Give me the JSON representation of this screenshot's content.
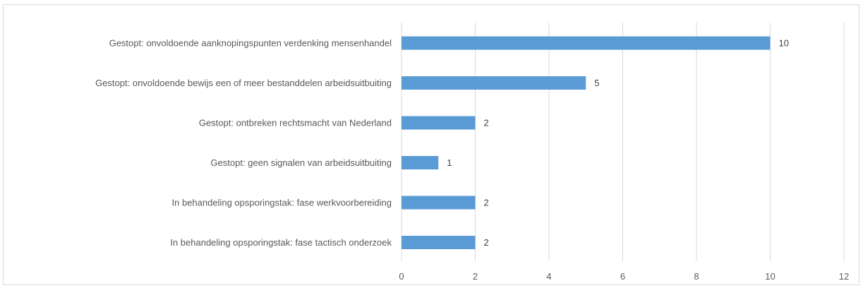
{
  "chart_data": {
    "type": "bar",
    "orientation": "horizontal",
    "categories": [
      "Gestopt: onvoldoende aanknopingspunten verdenking mensenhandel",
      "Gestopt: onvoldoende bewijs een of meer bestanddelen arbeidsuitbuiting",
      "Gestopt: ontbreken rechtsmacht van Nederland",
      "Gestopt: geen signalen van arbeidsuitbuiting",
      "In behandeling opsporingstak: fase werkvoorbereiding",
      "In behandeling opsporingstak: fase tactisch onderzoek"
    ],
    "values": [
      10,
      5,
      2,
      1,
      2,
      2
    ],
    "data_labels": [
      "10",
      "5",
      "2",
      "1",
      "2",
      "2"
    ],
    "xlim": [
      0,
      12
    ],
    "x_ticks": [
      0,
      2,
      4,
      6,
      8,
      10,
      12
    ],
    "x_tick_labels": [
      "0",
      "2",
      "4",
      "6",
      "8",
      "10",
      "12"
    ],
    "grid": "vertical",
    "legend": "none",
    "bar_color": "#5b9bd5",
    "grid_color": "#d9d9d9",
    "title": "",
    "xlabel": "",
    "ylabel": ""
  }
}
